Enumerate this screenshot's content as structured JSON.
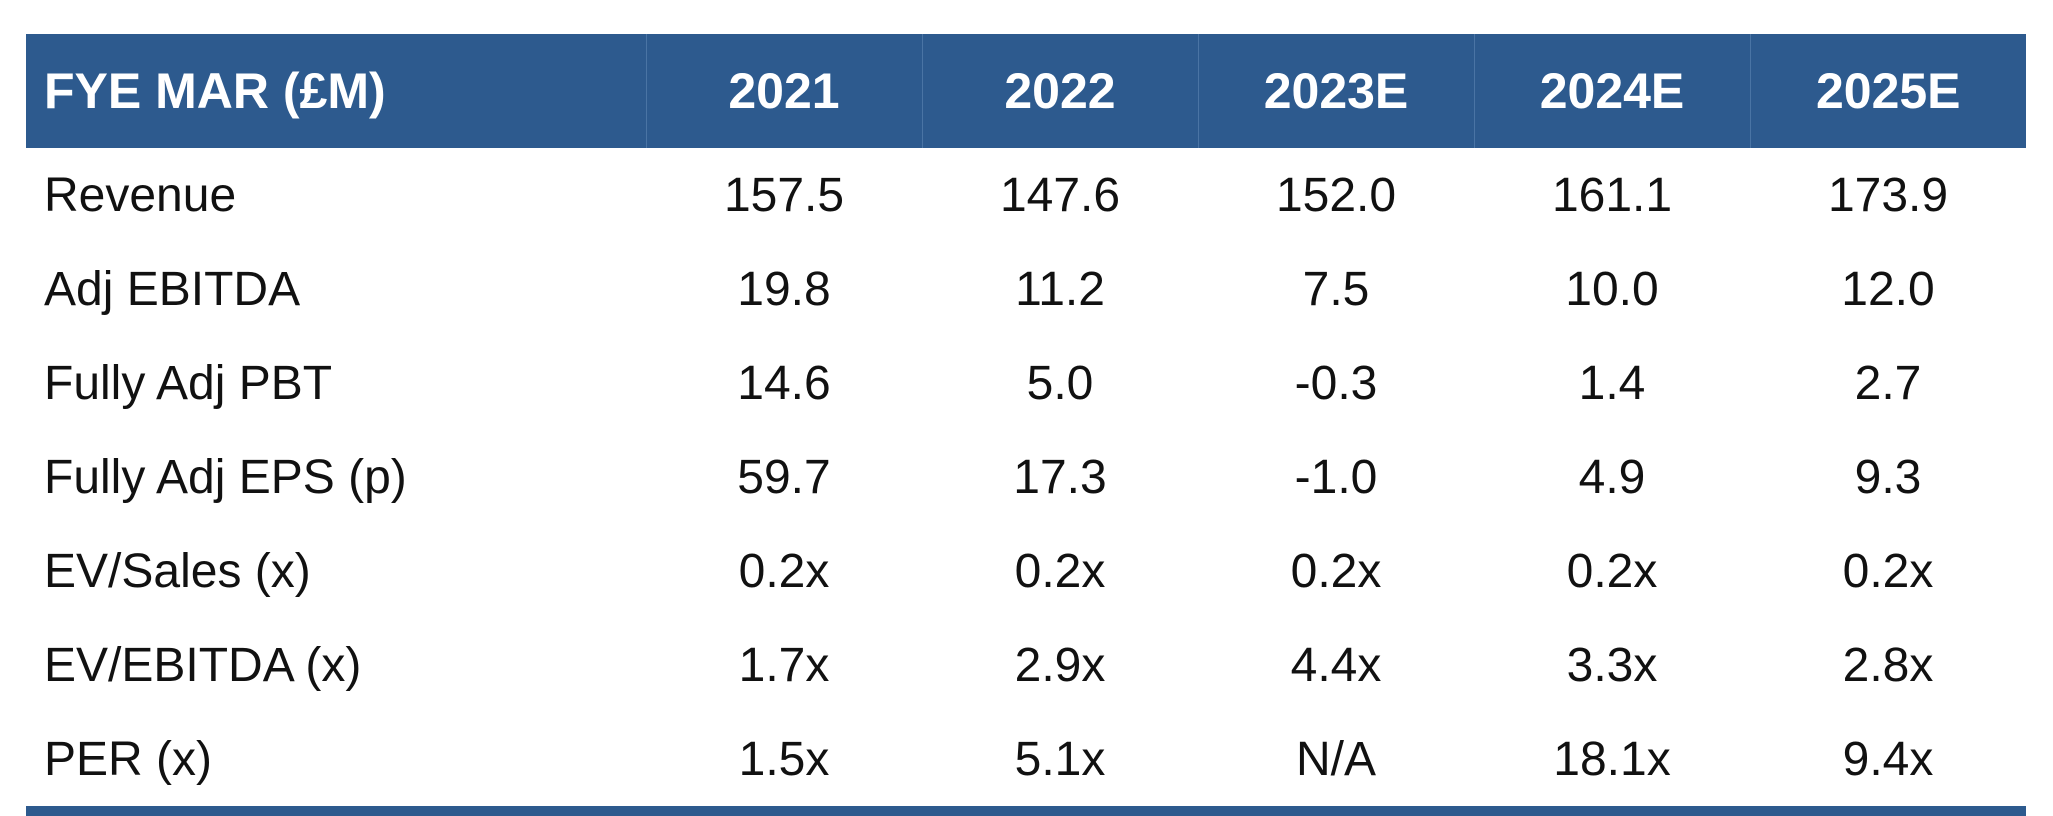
{
  "table": {
    "header": {
      "label": "FYE MAR (£M)",
      "years": [
        "2021",
        "2022",
        "2023E",
        "2024E",
        "2025E"
      ]
    },
    "rows": [
      {
        "label": "Revenue",
        "values": [
          "157.5",
          "147.6",
          "152.0",
          "161.1",
          "173.9"
        ]
      },
      {
        "label": "Adj EBITDA",
        "values": [
          "19.8",
          "11.2",
          "7.5",
          "10.0",
          "12.0"
        ]
      },
      {
        "label": "Fully Adj PBT",
        "values": [
          "14.6",
          "5.0",
          "-0.3",
          "1.4",
          "2.7"
        ]
      },
      {
        "label": "Fully Adj EPS (p)",
        "values": [
          "59.7",
          "17.3",
          "-1.0",
          "4.9",
          "9.3"
        ]
      },
      {
        "label": "EV/Sales (x)",
        "values": [
          "0.2x",
          "0.2x",
          "0.2x",
          "0.2x",
          "0.2x"
        ]
      },
      {
        "label": "EV/EBITDA (x)",
        "values": [
          "1.7x",
          "2.9x",
          "4.4x",
          "3.3x",
          "2.8x"
        ]
      },
      {
        "label": "PER (x)",
        "values": [
          "1.5x",
          "5.1x",
          "N/A",
          "18.1x",
          "9.4x"
        ]
      }
    ]
  },
  "colors": {
    "header_bg": "#2d5a8e",
    "header_text": "#ffffff",
    "body_text": "#111111"
  }
}
